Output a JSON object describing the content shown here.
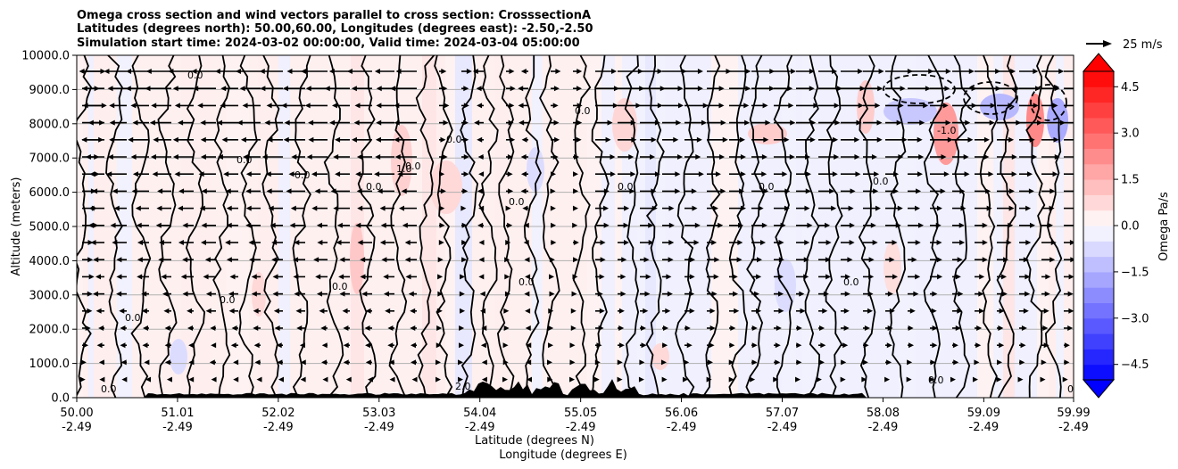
{
  "chart_data": {
    "type": "heatmap",
    "title_lines": [
      "Omega cross section and wind vectors parallel to cross section: CrosssectionA",
      "Latitudes (degrees north): 50.00,60.00, Longitudes (degrees east): -2.50,-2.50",
      "Simulation start time: 2024-03-02 00:00:00, Valid time: 2024-03-04 05:00:00"
    ],
    "ylabel": "Altitude (meters)",
    "xlabel_lat": "Latitude (degrees N)",
    "xlabel_lon": "Longitude (degrees E)",
    "ylim": [
      0,
      10000
    ],
    "xlim": [
      50.0,
      59.99
    ],
    "yticks": [
      {
        "value": 0,
        "label": "0.0"
      },
      {
        "value": 1000,
        "label": "1000.0"
      },
      {
        "value": 2000,
        "label": "2000.0"
      },
      {
        "value": 3000,
        "label": "3000.0"
      },
      {
        "value": 4000,
        "label": "4000.0"
      },
      {
        "value": 5000,
        "label": "5000.0"
      },
      {
        "value": 6000,
        "label": "6000.0"
      },
      {
        "value": 7000,
        "label": "7000.0"
      },
      {
        "value": 8000,
        "label": "8000.0"
      },
      {
        "value": 9000,
        "label": "9000.0"
      },
      {
        "value": 10000,
        "label": "10000.0"
      }
    ],
    "xticks": [
      {
        "value": 50.0,
        "lat": "50.00",
        "lon": "-2.49"
      },
      {
        "value": 51.01,
        "lat": "51.01",
        "lon": "-2.49"
      },
      {
        "value": 52.02,
        "lat": "52.02",
        "lon": "-2.49"
      },
      {
        "value": 53.03,
        "lat": "53.03",
        "lon": "-2.49"
      },
      {
        "value": 54.04,
        "lat": "54.04",
        "lon": "-2.49"
      },
      {
        "value": 55.05,
        "lat": "55.05",
        "lon": "-2.49"
      },
      {
        "value": 56.06,
        "lat": "56.06",
        "lon": "-2.49"
      },
      {
        "value": 57.07,
        "lat": "57.07",
        "lon": "-2.49"
      },
      {
        "value": 58.08,
        "lat": "58.08",
        "lon": "-2.49"
      },
      {
        "value": 59.09,
        "lat": "59.09",
        "lon": "-2.49"
      },
      {
        "value": 59.99,
        "lat": "59.99",
        "lon": "-2.49"
      }
    ],
    "colorbar": {
      "label": "Omega Pa/s",
      "range": [
        -5,
        5
      ],
      "ticks": [
        {
          "value": 4.5,
          "label": "4.5"
        },
        {
          "value": 3.0,
          "label": "3.0"
        },
        {
          "value": 1.5,
          "label": "1.5"
        },
        {
          "value": 0.0,
          "label": "0.0"
        },
        {
          "value": -1.5,
          "label": "−1.5"
        },
        {
          "value": -3.0,
          "label": "−3.0"
        },
        {
          "value": -4.5,
          "label": "−4.5"
        }
      ],
      "colormap": "bwr",
      "levels": 20
    },
    "quiver_key": {
      "label": "25 m/s",
      "speed": 25
    },
    "contour_label": "0.0",
    "contour_labels_extra": [
      "1.0",
      "-1.0",
      "2.0"
    ],
    "wind_direction_by_latitude": [
      {
        "lat_range": [
          50.0,
          51.0
        ],
        "direction": "mixed"
      },
      {
        "lat_range": [
          51.0,
          53.5
        ],
        "direction": "westward"
      },
      {
        "lat_range": [
          53.5,
          55.0
        ],
        "direction": "weak"
      },
      {
        "lat_range": [
          55.0,
          59.99
        ],
        "direction": "eastward"
      }
    ],
    "terrain_peak_m": 600
  }
}
